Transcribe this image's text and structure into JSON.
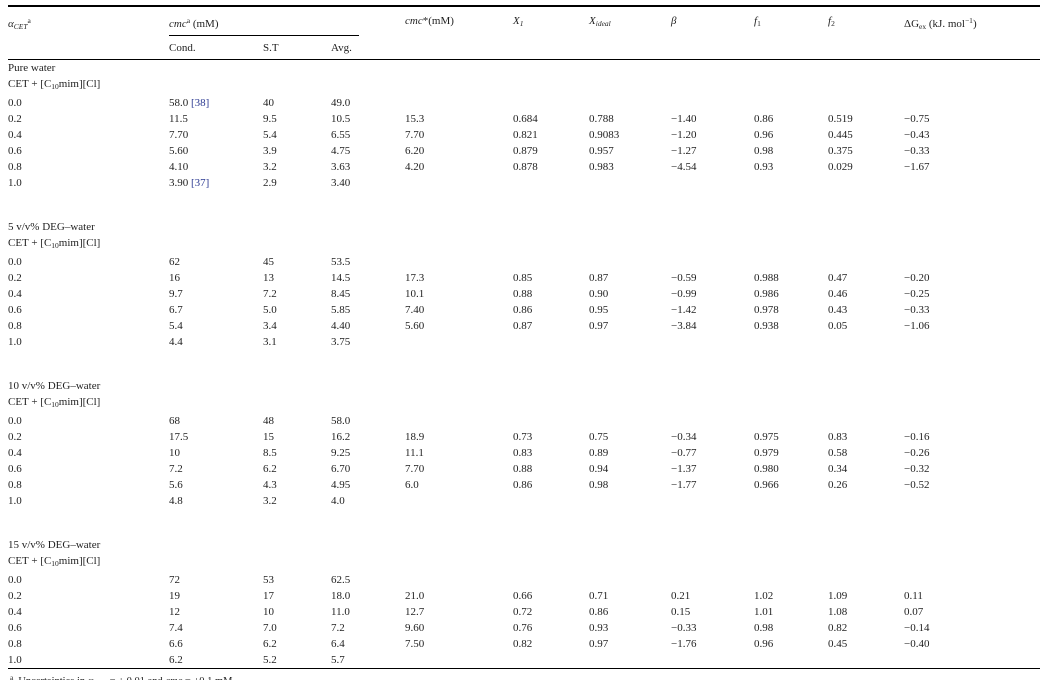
{
  "citation_color": "#2c3a92",
  "table": {
    "headers": {
      "alpha": "<i>α<sub>CET</sub></i><sup>a</sup>",
      "cmc_group": "<i>cmc</i><sup>a</sup> (mM)",
      "cond": "Cond.",
      "st": "S.T",
      "avg": "Avg.",
      "cmc_star": "<i>cmc</i>*(mM)",
      "x1": "<i>X<sub>1</sub></i>",
      "x_ideal": "<i>X<sub>ideal</sub></i>",
      "beta": "<i>β</i>",
      "f1": "<i>f</i><sub>1</sub>",
      "f2": "<i>f</i><sub>2</sub>",
      "dg_ex": "ΔG<sub>ex</sub> (kJ. mol<sup>−1</sup>)"
    },
    "sections": [
      {
        "solvent": "Pure water",
        "system": "CET + [C<sub>10</sub>mim][Cl]",
        "rows": [
          [
            "0.0",
            "58.0 [38]",
            "40",
            "49.0",
            "",
            "",
            "",
            "",
            "",
            "",
            ""
          ],
          [
            "0.2",
            "11.5",
            "9.5",
            "10.5",
            "15.3",
            "0.684",
            "0.788",
            "−1.40",
            "0.86",
            "0.519",
            "−0.75"
          ],
          [
            "0.4",
            "7.70",
            "5.4",
            "6.55",
            "7.70",
            "0.821",
            "0.9083",
            "−1.20",
            "0.96",
            "0.445",
            "−0.43"
          ],
          [
            "0.6",
            "5.60",
            "3.9",
            "4.75",
            "6.20",
            "0.879",
            "0.957",
            "−1.27",
            "0.98",
            "0.375",
            "−0.33"
          ],
          [
            "0.8",
            "4.10",
            "3.2",
            "3.63",
            "4.20",
            "0.878",
            "0.983",
            "−4.54",
            "0.93",
            "0.029",
            "−1.67"
          ],
          [
            "1.0",
            "3.90 [37]",
            "2.9",
            "3.40",
            "",
            "",
            "",
            "",
            "",
            "",
            ""
          ]
        ]
      },
      {
        "solvent": "5 v/v% DEG–water",
        "system": "CET + [C<sub>10</sub>mim][Cl]",
        "rows": [
          [
            "0.0",
            "62",
            "45",
            "53.5",
            "",
            "",
            "",
            "",
            "",
            "",
            ""
          ],
          [
            "0.2",
            "16",
            "13",
            "14.5",
            "17.3",
            "0.85",
            "0.87",
            "−0.59",
            "0.988",
            "0.47",
            "−0.20"
          ],
          [
            "0.4",
            "9.7",
            "7.2",
            "8.45",
            "10.1",
            "0.88",
            "0.90",
            "−0.99",
            "0.986",
            "0.46",
            "−0.25"
          ],
          [
            "0.6",
            "6.7",
            "5.0",
            "5.85",
            "7.40",
            "0.86",
            "0.95",
            "−1.42",
            "0.978",
            "0.43",
            "−0.33"
          ],
          [
            "0.8",
            "5.4",
            "3.4",
            "4.40",
            "5.60",
            "0.87",
            "0.97",
            "−3.84",
            "0.938",
            "0.05",
            "−1.06"
          ],
          [
            "1.0",
            "4.4",
            "3.1",
            "3.75",
            "",
            "",
            "",
            "",
            "",
            "",
            ""
          ]
        ]
      },
      {
        "solvent": "10 v/v% DEG–water",
        "system": "CET + [C<sub>10</sub>mim][Cl]",
        "rows": [
          [
            "0.0",
            "68",
            "48",
            "58.0",
            "",
            "",
            "",
            "",
            "",
            "",
            ""
          ],
          [
            "0.2",
            "17.5",
            "15",
            "16.2",
            "18.9",
            "0.73",
            "0.75",
            "−0.34",
            "0.975",
            "0.83",
            "−0.16"
          ],
          [
            "0.4",
            "10",
            "8.5",
            "9.25",
            "11.1",
            "0.83",
            "0.89",
            "−0.77",
            "0.979",
            "0.58",
            "−0.26"
          ],
          [
            "0.6",
            "7.2",
            "6.2",
            "6.70",
            "7.70",
            "0.88",
            "0.94",
            "−1.37",
            "0.980",
            "0.34",
            "−0.32"
          ],
          [
            "0.8",
            "5.6",
            "4.3",
            "4.95",
            "6.0",
            "0.86",
            "0.98",
            "−1.77",
            "0.966",
            "0.26",
            "−0.52"
          ],
          [
            "1.0",
            "4.8",
            "3.2",
            "4.0",
            "",
            "",
            "",
            "",
            "",
            "",
            ""
          ]
        ]
      },
      {
        "solvent": "15 v/v% DEG–water",
        "system": "CET + [C<sub>10</sub>mim][Cl]",
        "rows": [
          [
            "0.0",
            "72",
            "53",
            "62.5",
            "",
            "",
            "",
            "",
            "",
            "",
            ""
          ],
          [
            "0.2",
            "19",
            "17",
            "18.0",
            "21.0",
            "0.66",
            "0.71",
            "0.21",
            "1.02",
            "1.09",
            "0.11"
          ],
          [
            "0.4",
            "12",
            "10",
            "11.0",
            "12.7",
            "0.72",
            "0.86",
            "0.15",
            "1.01",
            "1.08",
            "0.07"
          ],
          [
            "0.6",
            "7.4",
            "7.0",
            "7.2",
            "9.60",
            "0.76",
            "0.93",
            "−0.33",
            "0.98",
            "0.82",
            "−0.14"
          ],
          [
            "0.8",
            "6.6",
            "6.2",
            "6.4",
            "7.50",
            "0.82",
            "0.97",
            "−1.76",
            "0.96",
            "0.45",
            "−0.40"
          ],
          [
            "1.0",
            "6.2",
            "5.2",
            "5.7",
            "",
            "",
            "",
            "",
            "",
            "",
            ""
          ]
        ]
      }
    ]
  },
  "footnote": {
    "marker": "a",
    "html": "Uncertainties in <i>α<sub>CET</sub></i> = ± 0.01 and <i>cmc</i> = ±0.1 mM."
  }
}
